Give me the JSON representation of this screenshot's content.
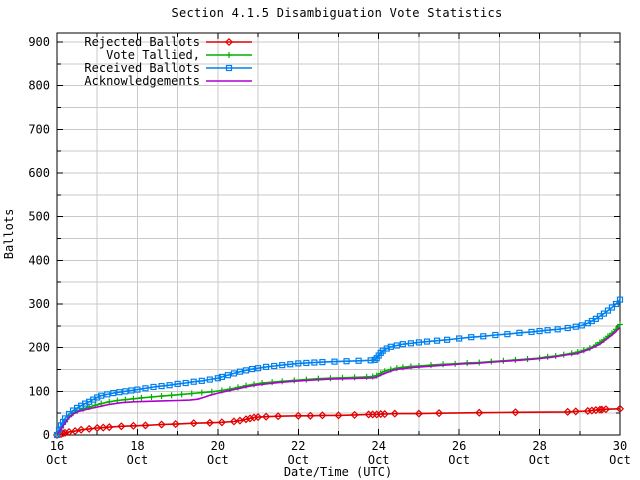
{
  "chart_data": {
    "type": "line",
    "title": "Section 4.1.5 Disambiguation Vote Statistics",
    "xlabel": "Date/Time (UTC)",
    "ylabel": "Ballots",
    "xlim": [
      16,
      30
    ],
    "ylim": [
      0,
      920
    ],
    "x_major_ticks": [
      16,
      18,
      20,
      22,
      24,
      26,
      28,
      30
    ],
    "x_minor_step": 1,
    "x_tick_month": "Oct",
    "y_major_ticks": [
      0,
      100,
      200,
      300,
      400,
      500,
      600,
      700,
      800,
      900
    ],
    "y_minor_step": 50,
    "grid": true,
    "legend_position": "top-left-inside",
    "grid_color": "#c9c9c9",
    "series": [
      {
        "name": "Rejected Ballots",
        "color": "#e00000",
        "marker": "diamond",
        "points": [
          [
            16.0,
            0
          ],
          [
            16.1,
            2
          ],
          [
            16.15,
            4
          ],
          [
            16.2,
            5
          ],
          [
            16.3,
            7
          ],
          [
            16.45,
            9
          ],
          [
            16.6,
            12
          ],
          [
            16.8,
            14
          ],
          [
            17.0,
            16
          ],
          [
            17.15,
            17
          ],
          [
            17.3,
            18
          ],
          [
            17.6,
            20
          ],
          [
            17.9,
            21
          ],
          [
            18.2,
            22
          ],
          [
            18.6,
            24
          ],
          [
            18.95,
            25
          ],
          [
            19.4,
            27
          ],
          [
            19.8,
            28
          ],
          [
            20.1,
            29
          ],
          [
            20.4,
            31
          ],
          [
            20.55,
            33
          ],
          [
            20.7,
            36
          ],
          [
            20.8,
            38
          ],
          [
            20.9,
            40
          ],
          [
            21.0,
            41
          ],
          [
            21.2,
            42
          ],
          [
            21.5,
            43
          ],
          [
            22.0,
            44
          ],
          [
            22.3,
            44
          ],
          [
            22.6,
            45
          ],
          [
            23.0,
            45
          ],
          [
            23.4,
            46
          ],
          [
            23.75,
            47
          ],
          [
            23.85,
            47
          ],
          [
            23.95,
            47
          ],
          [
            24.05,
            48
          ],
          [
            24.15,
            48
          ],
          [
            24.4,
            49
          ],
          [
            25.0,
            49
          ],
          [
            25.5,
            50
          ],
          [
            26.5,
            51
          ],
          [
            27.4,
            52
          ],
          [
            28.7,
            53
          ],
          [
            28.9,
            54
          ],
          [
            29.2,
            55
          ],
          [
            29.3,
            56
          ],
          [
            29.4,
            57
          ],
          [
            29.5,
            58
          ],
          [
            29.55,
            58
          ],
          [
            29.65,
            59
          ],
          [
            30.0,
            60
          ]
        ]
      },
      {
        "name": "Vote Tallied,",
        "color": "#00b000",
        "marker": "plus",
        "points": [
          [
            16.0,
            0
          ],
          [
            16.05,
            8
          ],
          [
            16.1,
            16
          ],
          [
            16.2,
            30
          ],
          [
            16.3,
            42
          ],
          [
            16.4,
            50
          ],
          [
            16.5,
            55
          ],
          [
            16.65,
            60
          ],
          [
            16.8,
            64
          ],
          [
            16.95,
            68
          ],
          [
            17.1,
            72
          ],
          [
            17.3,
            76
          ],
          [
            17.5,
            79
          ],
          [
            17.7,
            81
          ],
          [
            17.9,
            83
          ],
          [
            18.1,
            85
          ],
          [
            18.35,
            87
          ],
          [
            18.6,
            89
          ],
          [
            18.85,
            91
          ],
          [
            19.1,
            93
          ],
          [
            19.35,
            95
          ],
          [
            19.6,
            97
          ],
          [
            19.85,
            99
          ],
          [
            20.1,
            102
          ],
          [
            20.3,
            105
          ],
          [
            20.5,
            109
          ],
          [
            20.7,
            113
          ],
          [
            20.9,
            116
          ],
          [
            21.1,
            119
          ],
          [
            21.35,
            121
          ],
          [
            21.6,
            123
          ],
          [
            21.9,
            125
          ],
          [
            22.2,
            127
          ],
          [
            22.5,
            129
          ],
          [
            22.8,
            130
          ],
          [
            23.1,
            131
          ],
          [
            23.4,
            132
          ],
          [
            23.7,
            133
          ],
          [
            23.85,
            134
          ],
          [
            23.95,
            136
          ],
          [
            24.05,
            141
          ],
          [
            24.15,
            146
          ],
          [
            24.3,
            150
          ],
          [
            24.45,
            153
          ],
          [
            24.6,
            155
          ],
          [
            24.8,
            157
          ],
          [
            25.0,
            158
          ],
          [
            25.3,
            160
          ],
          [
            25.6,
            162
          ],
          [
            25.9,
            163
          ],
          [
            26.2,
            165
          ],
          [
            26.5,
            166
          ],
          [
            26.8,
            168
          ],
          [
            27.1,
            170
          ],
          [
            27.4,
            172
          ],
          [
            27.7,
            174
          ],
          [
            28.0,
            176
          ],
          [
            28.2,
            179
          ],
          [
            28.4,
            181
          ],
          [
            28.6,
            184
          ],
          [
            28.8,
            187
          ],
          [
            28.95,
            190
          ],
          [
            29.1,
            194
          ],
          [
            29.25,
            199
          ],
          [
            29.4,
            206
          ],
          [
            29.5,
            212
          ],
          [
            29.6,
            218
          ],
          [
            29.7,
            226
          ],
          [
            29.8,
            233
          ],
          [
            29.9,
            242
          ],
          [
            30.0,
            253
          ]
        ]
      },
      {
        "name": "Received Ballots",
        "color": "#0080f0",
        "marker": "square",
        "points": [
          [
            16.0,
            0
          ],
          [
            16.05,
            12
          ],
          [
            16.1,
            22
          ],
          [
            16.15,
            30
          ],
          [
            16.2,
            38
          ],
          [
            16.3,
            48
          ],
          [
            16.4,
            56
          ],
          [
            16.5,
            62
          ],
          [
            16.6,
            67
          ],
          [
            16.7,
            72
          ],
          [
            16.8,
            76
          ],
          [
            16.9,
            81
          ],
          [
            17.0,
            86
          ],
          [
            17.1,
            90
          ],
          [
            17.25,
            93
          ],
          [
            17.4,
            96
          ],
          [
            17.55,
            98
          ],
          [
            17.7,
            100
          ],
          [
            17.85,
            102
          ],
          [
            18.0,
            104
          ],
          [
            18.2,
            107
          ],
          [
            18.4,
            110
          ],
          [
            18.6,
            112
          ],
          [
            18.8,
            114
          ],
          [
            19.0,
            117
          ],
          [
            19.2,
            119
          ],
          [
            19.4,
            122
          ],
          [
            19.6,
            124
          ],
          [
            19.8,
            127
          ],
          [
            20.0,
            130
          ],
          [
            20.1,
            133
          ],
          [
            20.25,
            137
          ],
          [
            20.4,
            141
          ],
          [
            20.55,
            145
          ],
          [
            20.7,
            148
          ],
          [
            20.85,
            151
          ],
          [
            21.0,
            153
          ],
          [
            21.2,
            156
          ],
          [
            21.4,
            158
          ],
          [
            21.6,
            160
          ],
          [
            21.8,
            162
          ],
          [
            22.0,
            164
          ],
          [
            22.2,
            165
          ],
          [
            22.4,
            166
          ],
          [
            22.6,
            167
          ],
          [
            22.9,
            168
          ],
          [
            23.2,
            169
          ],
          [
            23.5,
            170
          ],
          [
            23.8,
            171
          ],
          [
            23.9,
            172
          ],
          [
            23.95,
            176
          ],
          [
            24.0,
            182
          ],
          [
            24.05,
            188
          ],
          [
            24.1,
            193
          ],
          [
            24.2,
            198
          ],
          [
            24.3,
            202
          ],
          [
            24.45,
            205
          ],
          [
            24.6,
            208
          ],
          [
            24.8,
            210
          ],
          [
            25.0,
            212
          ],
          [
            25.2,
            214
          ],
          [
            25.45,
            216
          ],
          [
            25.7,
            218
          ],
          [
            26.0,
            221
          ],
          [
            26.3,
            224
          ],
          [
            26.6,
            226
          ],
          [
            26.9,
            229
          ],
          [
            27.2,
            231
          ],
          [
            27.5,
            234
          ],
          [
            27.8,
            236
          ],
          [
            28.0,
            238
          ],
          [
            28.2,
            240
          ],
          [
            28.45,
            242
          ],
          [
            28.7,
            245
          ],
          [
            28.9,
            248
          ],
          [
            29.05,
            251
          ],
          [
            29.2,
            256
          ],
          [
            29.3,
            261
          ],
          [
            29.4,
            266
          ],
          [
            29.5,
            272
          ],
          [
            29.6,
            278
          ],
          [
            29.7,
            285
          ],
          [
            29.8,
            292
          ],
          [
            29.9,
            300
          ],
          [
            30.0,
            310
          ]
        ]
      },
      {
        "name": "Acknowledgements",
        "color": "#b000d0",
        "marker": "none",
        "points": [
          [
            16.0,
            0
          ],
          [
            16.1,
            14
          ],
          [
            16.2,
            28
          ],
          [
            16.3,
            40
          ],
          [
            16.4,
            48
          ],
          [
            16.5,
            53
          ],
          [
            16.7,
            58
          ],
          [
            16.9,
            62
          ],
          [
            17.1,
            66
          ],
          [
            17.3,
            70
          ],
          [
            17.6,
            74
          ],
          [
            17.9,
            76
          ],
          [
            18.2,
            77
          ],
          [
            18.6,
            78
          ],
          [
            19.0,
            79
          ],
          [
            19.3,
            80
          ],
          [
            19.5,
            82
          ],
          [
            19.65,
            86
          ],
          [
            19.8,
            91
          ],
          [
            20.0,
            96
          ],
          [
            20.2,
            100
          ],
          [
            20.4,
            104
          ],
          [
            20.6,
            108
          ],
          [
            20.8,
            112
          ],
          [
            21.0,
            115
          ],
          [
            21.3,
            118
          ],
          [
            21.6,
            121
          ],
          [
            22.0,
            124
          ],
          [
            22.4,
            126
          ],
          [
            22.8,
            128
          ],
          [
            23.2,
            129
          ],
          [
            23.6,
            130
          ],
          [
            23.9,
            131
          ],
          [
            24.05,
            137
          ],
          [
            24.2,
            143
          ],
          [
            24.35,
            148
          ],
          [
            24.5,
            151
          ],
          [
            24.7,
            153
          ],
          [
            24.9,
            155
          ],
          [
            25.2,
            157
          ],
          [
            25.5,
            159
          ],
          [
            25.8,
            161
          ],
          [
            26.1,
            163
          ],
          [
            26.4,
            164
          ],
          [
            26.7,
            166
          ],
          [
            27.0,
            168
          ],
          [
            27.3,
            170
          ],
          [
            27.6,
            172
          ],
          [
            27.9,
            174
          ],
          [
            28.1,
            176
          ],
          [
            28.3,
            178
          ],
          [
            28.5,
            181
          ],
          [
            28.7,
            184
          ],
          [
            28.9,
            186
          ],
          [
            29.05,
            190
          ],
          [
            29.2,
            195
          ],
          [
            29.35,
            201
          ],
          [
            29.5,
            208
          ],
          [
            29.6,
            215
          ],
          [
            29.7,
            222
          ],
          [
            29.8,
            229
          ],
          [
            29.9,
            237
          ],
          [
            30.0,
            247
          ]
        ]
      }
    ]
  }
}
